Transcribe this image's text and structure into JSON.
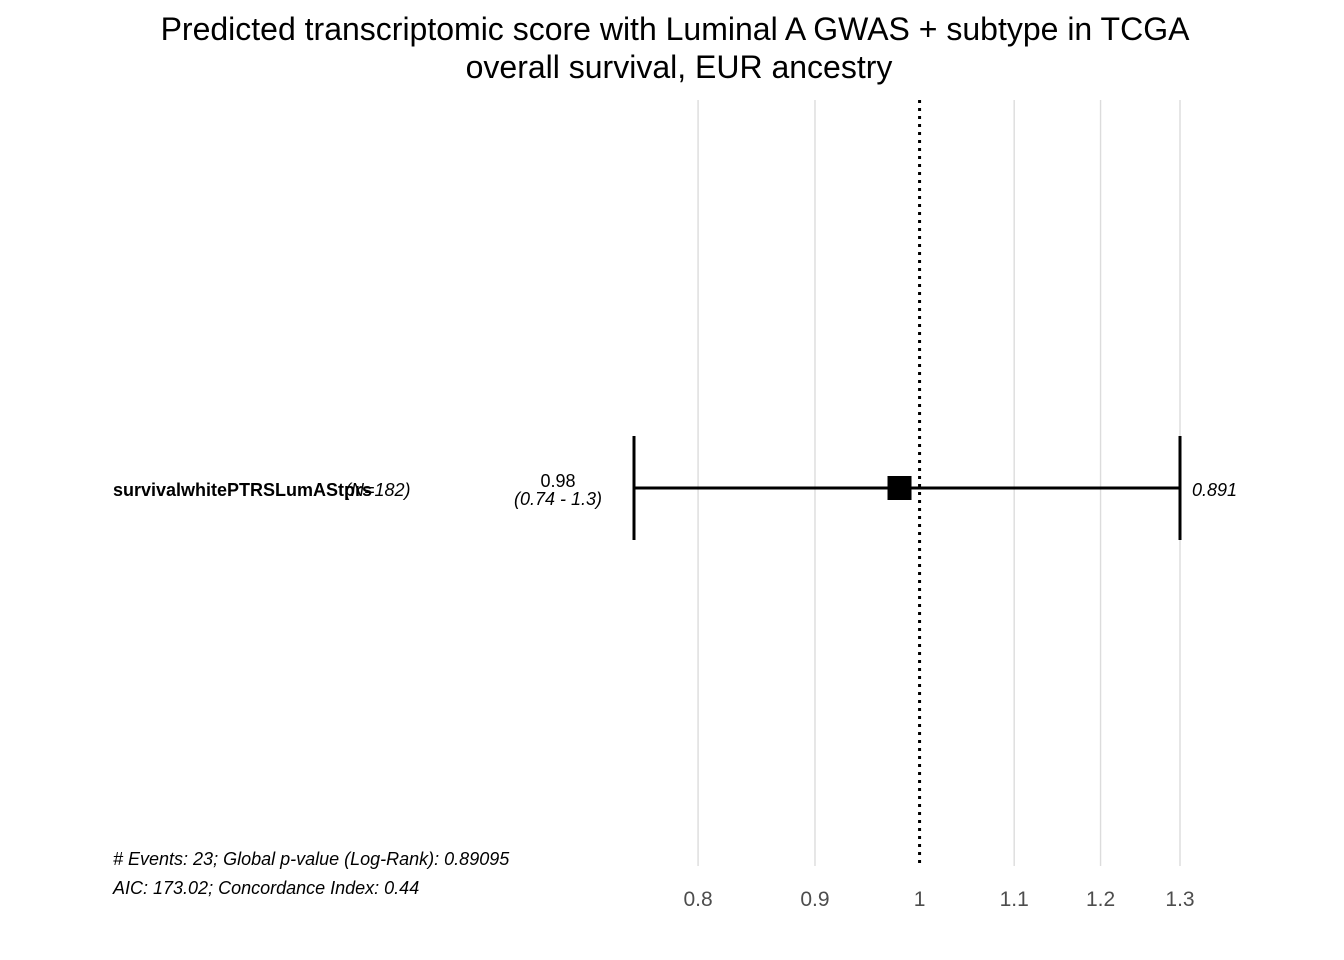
{
  "chart_data": {
    "type": "forest",
    "title": [
      "Predicted transcriptomic score with Luminal A GWAS + subtype in TCGA",
      "overall survival, EUR ancestry"
    ],
    "xlabel": "",
    "ylabel": "",
    "xlim": [
      0.75,
      1.3
    ],
    "x_ticks": [
      0.8,
      0.9,
      1,
      1.1,
      1.2,
      1.3
    ],
    "x_tick_labels": [
      "0.8",
      "0.9",
      "1",
      "1.1",
      "1.2",
      "1.3"
    ],
    "x_scale": "log",
    "grid": true,
    "reference_line": 1,
    "rows": [
      {
        "variable": "survivalwhitePTRSLumAStprs",
        "n_label": "(N=182)",
        "hr": 0.98,
        "hr_label": "0.98",
        "ci_lower": 0.74,
        "ci_upper": 1.3,
        "ci_label": "(0.74 - 1.3)",
        "p_label": "0.891"
      }
    ],
    "footnotes": [
      "# Events: 23; Global p-value (Log-Rank): 0.89095",
      "AIC: 173.02; Concordance Index: 0.44"
    ]
  }
}
